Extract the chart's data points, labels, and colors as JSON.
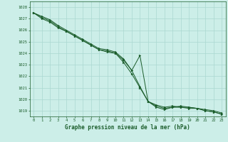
{
  "background_color": "#cceee8",
  "grid_color": "#aad8d0",
  "line_color": "#1a5c2a",
  "marker_color": "#1a5c2a",
  "title": "Graphe pression niveau de la mer (hPa)",
  "xlim": [
    -0.5,
    23.5
  ],
  "ylim": [
    1018.5,
    1028.5
  ],
  "yticks": [
    1019,
    1020,
    1021,
    1022,
    1023,
    1024,
    1025,
    1026,
    1027,
    1028
  ],
  "xticks": [
    0,
    1,
    2,
    3,
    4,
    5,
    6,
    7,
    8,
    9,
    10,
    11,
    12,
    13,
    14,
    15,
    16,
    17,
    18,
    19,
    20,
    21,
    22,
    23
  ],
  "series": [
    {
      "x": [
        0,
        1,
        2,
        3,
        4,
        5,
        6,
        7,
        8,
        9,
        10,
        11,
        12,
        13,
        14,
        15,
        16,
        17,
        18,
        19,
        20,
        21,
        22,
        23
      ],
      "y": [
        1027.5,
        1027.0,
        1026.7,
        1026.2,
        1025.9,
        1025.5,
        1025.1,
        1024.7,
        1024.3,
        1024.1,
        1024.0,
        1023.4,
        1022.5,
        1021.1,
        1019.8,
        1019.5,
        1019.3,
        1019.4,
        1019.3,
        1019.3,
        1019.2,
        1019.1,
        1019.0,
        1018.8
      ]
    },
    {
      "x": [
        0,
        1,
        2,
        3,
        4,
        5,
        6,
        7,
        8,
        9,
        10,
        11,
        12,
        13,
        14,
        15,
        16,
        17,
        18,
        19,
        20,
        21,
        22,
        23
      ],
      "y": [
        1027.5,
        1027.1,
        1026.8,
        1026.3,
        1025.9,
        1025.5,
        1025.1,
        1024.7,
        1024.3,
        1024.2,
        1024.0,
        1023.2,
        1022.2,
        1021.0,
        1019.8,
        1019.4,
        1019.2,
        1019.3,
        1019.3,
        1019.2,
        1019.2,
        1019.0,
        1018.9,
        1018.7
      ]
    },
    {
      "x": [
        0,
        1,
        2,
        3,
        4,
        5,
        6,
        7,
        8,
        9,
        10,
        11,
        12,
        13,
        14,
        15,
        16,
        17,
        18,
        19,
        20,
        21,
        22,
        23
      ],
      "y": [
        1027.5,
        1027.2,
        1026.9,
        1026.4,
        1026.0,
        1025.6,
        1025.2,
        1024.8,
        1024.4,
        1024.3,
        1024.1,
        1023.5,
        1022.5,
        1023.8,
        1019.8,
        1019.3,
        1019.1,
        1019.3,
        1019.4,
        1019.3,
        1019.2,
        1019.0,
        1018.9,
        1018.7
      ]
    }
  ]
}
